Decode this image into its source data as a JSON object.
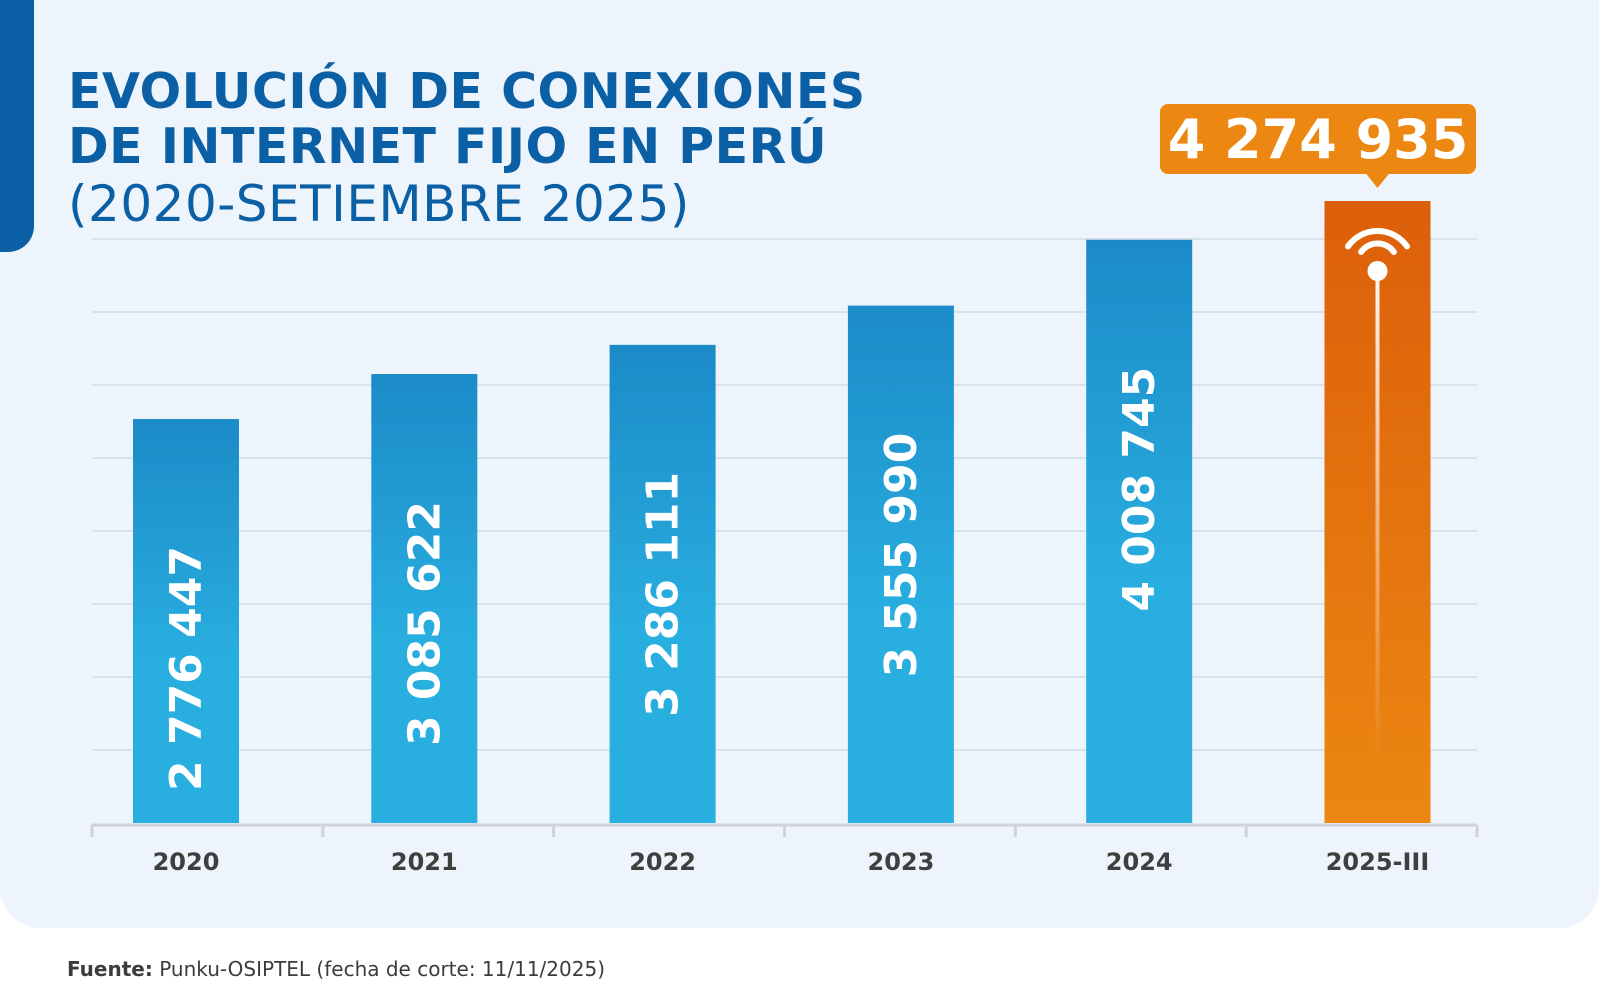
{
  "title": {
    "line1": "EVOLUCIÓN DE CONEXIONES",
    "line2": "DE INTERNET FIJO EN PERÚ",
    "subtitle": "(2020-SETIEMBRE 2025)"
  },
  "source": {
    "label": "Fuente:",
    "text": " Punku-OSIPTEL (fecha de corte: 11/11/2025)"
  },
  "colors": {
    "title": "#0b5fa5",
    "bar_top": "#1b8bc7",
    "bar_bottom": "#29aee0",
    "highlight_top": "#dc5f0a",
    "highlight_bottom": "#ec8712",
    "axis_label": "#3f3f3f"
  },
  "icons": {
    "highlight_bar": "wifi-icon"
  },
  "chart_data": {
    "type": "bar",
    "title": "EVOLUCIÓN DE CONEXIONES DE INTERNET FIJO EN PERÚ (2020-SETIEMBRE 2025)",
    "xlabel": "",
    "ylabel": "",
    "categories": [
      "2020",
      "2021",
      "2022",
      "2023",
      "2024",
      "2025-III"
    ],
    "values": [
      2776447,
      3085622,
      3286111,
      3555990,
      4008745,
      4274935
    ],
    "value_labels": [
      "2 776 447",
      "3 085 622",
      "3 286 111",
      "3 555 990",
      "4 008 745",
      "4 274 935"
    ],
    "highlight_index": 5,
    "ylim": [
      0,
      4274935
    ],
    "grid": true,
    "legend": "none"
  }
}
